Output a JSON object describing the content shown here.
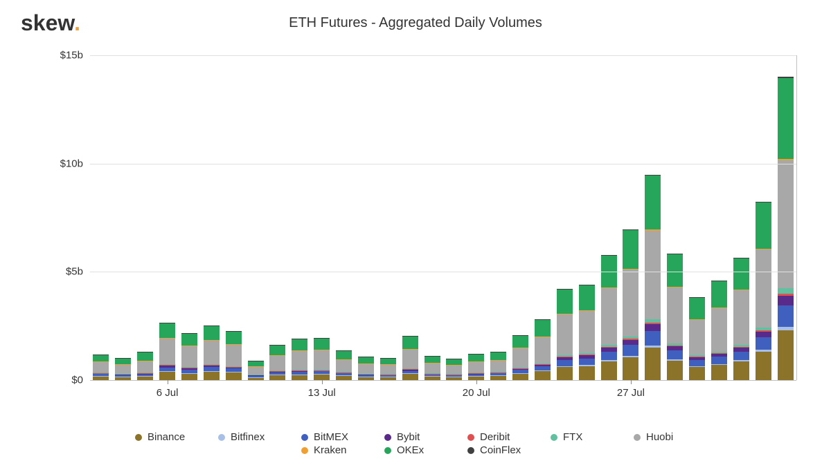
{
  "logo": {
    "text": "skew",
    "dot": "."
  },
  "title": "ETH Futures - Aggregated Daily Volumes",
  "chart": {
    "type": "stacked-bar",
    "background_color": "#ffffff",
    "grid_color": "#e0e0e0",
    "axis_color": "#c0c0c0",
    "text_color": "#333333",
    "title_fontsize": 20,
    "label_fontsize": 15,
    "ylim": [
      0,
      15
    ],
    "yticks": [
      0,
      5,
      10,
      15
    ],
    "ytick_labels": [
      "$0",
      "$5b",
      "$10b",
      "$15b"
    ],
    "bar_width_ratio": 0.72,
    "xticks": [
      3,
      10,
      17,
      24
    ],
    "xtick_labels": [
      "6 Jul",
      "13 Jul",
      "20 Jul",
      "27 Jul"
    ],
    "series": [
      {
        "key": "binance",
        "label": "Binance",
        "color": "#8b7329"
      },
      {
        "key": "bitfinex",
        "label": "Bitfinex",
        "color": "#a8c0e8"
      },
      {
        "key": "bitmex",
        "label": "BitMEX",
        "color": "#4060c0"
      },
      {
        "key": "bybit",
        "label": "Bybit",
        "color": "#5a2a8a"
      },
      {
        "key": "deribit",
        "label": "Deribit",
        "color": "#e05050"
      },
      {
        "key": "ftx",
        "label": "FTX",
        "color": "#60c0a0"
      },
      {
        "key": "huobi",
        "label": "Huobi",
        "color": "#a8a8a8"
      },
      {
        "key": "kraken",
        "label": "Kraken",
        "color": "#f0a030"
      },
      {
        "key": "okex",
        "label": "OKEx",
        "color": "#26a65b"
      },
      {
        "key": "coinflex",
        "label": "CoinFlex",
        "color": "#404040"
      }
    ],
    "legend_rows": [
      [
        "binance",
        "bitfinex",
        "bitmex",
        "bybit",
        "deribit",
        "ftx",
        "huobi"
      ],
      [
        "kraken",
        "okex",
        "coinflex"
      ]
    ],
    "data": [
      {
        "binance": 0.18,
        "bitfinex": 0.02,
        "bitmex": 0.08,
        "bybit": 0.04,
        "deribit": 0.01,
        "ftx": 0.03,
        "huobi": 0.5,
        "kraken": 0.01,
        "okex": 0.3,
        "coinflex": 0.01
      },
      {
        "binance": 0.15,
        "bitfinex": 0.02,
        "bitmex": 0.07,
        "bybit": 0.03,
        "deribit": 0.01,
        "ftx": 0.02,
        "huobi": 0.42,
        "kraken": 0.01,
        "okex": 0.28,
        "coinflex": 0.01
      },
      {
        "binance": 0.17,
        "bitfinex": 0.02,
        "bitmex": 0.08,
        "bybit": 0.04,
        "deribit": 0.01,
        "ftx": 0.03,
        "huobi": 0.55,
        "kraken": 0.01,
        "okex": 0.4,
        "coinflex": 0.01
      },
      {
        "binance": 0.38,
        "bitfinex": 0.03,
        "bitmex": 0.18,
        "bybit": 0.08,
        "deribit": 0.02,
        "ftx": 0.05,
        "huobi": 1.2,
        "kraken": 0.01,
        "okex": 0.7,
        "coinflex": 0.01
      },
      {
        "binance": 0.3,
        "bitfinex": 0.03,
        "bitmex": 0.15,
        "bybit": 0.06,
        "deribit": 0.02,
        "ftx": 0.04,
        "huobi": 1.0,
        "kraken": 0.01,
        "okex": 0.55,
        "coinflex": 0.01
      },
      {
        "binance": 0.4,
        "bitfinex": 0.03,
        "bitmex": 0.17,
        "bybit": 0.07,
        "deribit": 0.02,
        "ftx": 0.05,
        "huobi": 1.1,
        "kraken": 0.01,
        "okex": 0.65,
        "coinflex": 0.01
      },
      {
        "binance": 0.35,
        "bitfinex": 0.03,
        "bitmex": 0.15,
        "bybit": 0.06,
        "deribit": 0.02,
        "ftx": 0.04,
        "huobi": 1.0,
        "kraken": 0.01,
        "okex": 0.6,
        "coinflex": 0.01
      },
      {
        "binance": 0.12,
        "bitfinex": 0.02,
        "bitmex": 0.06,
        "bybit": 0.03,
        "deribit": 0.01,
        "ftx": 0.02,
        "huobi": 0.38,
        "kraken": 0.01,
        "okex": 0.25,
        "coinflex": 0.01
      },
      {
        "binance": 0.24,
        "bitfinex": 0.02,
        "bitmex": 0.1,
        "bybit": 0.05,
        "deribit": 0.01,
        "ftx": 0.03,
        "huobi": 0.7,
        "kraken": 0.01,
        "okex": 0.45,
        "coinflex": 0.01
      },
      {
        "binance": 0.25,
        "bitfinex": 0.02,
        "bitmex": 0.11,
        "bybit": 0.05,
        "deribit": 0.01,
        "ftx": 0.03,
        "huobi": 0.9,
        "kraken": 0.01,
        "okex": 0.52,
        "coinflex": 0.01
      },
      {
        "binance": 0.26,
        "bitfinex": 0.02,
        "bitmex": 0.12,
        "bybit": 0.05,
        "deribit": 0.01,
        "ftx": 0.03,
        "huobi": 0.9,
        "kraken": 0.01,
        "okex": 0.55,
        "coinflex": 0.01
      },
      {
        "binance": 0.2,
        "bitfinex": 0.02,
        "bitmex": 0.09,
        "bybit": 0.04,
        "deribit": 0.01,
        "ftx": 0.02,
        "huobi": 0.58,
        "kraken": 0.01,
        "okex": 0.4,
        "coinflex": 0.01
      },
      {
        "binance": 0.15,
        "bitfinex": 0.02,
        "bitmex": 0.07,
        "bybit": 0.03,
        "deribit": 0.01,
        "ftx": 0.02,
        "huobi": 0.45,
        "kraken": 0.01,
        "okex": 0.3,
        "coinflex": 0.01
      },
      {
        "binance": 0.14,
        "bitfinex": 0.02,
        "bitmex": 0.07,
        "bybit": 0.03,
        "deribit": 0.01,
        "ftx": 0.02,
        "huobi": 0.42,
        "kraken": 0.01,
        "okex": 0.3,
        "coinflex": 0.01
      },
      {
        "binance": 0.28,
        "bitfinex": 0.03,
        "bitmex": 0.12,
        "bybit": 0.06,
        "deribit": 0.01,
        "ftx": 0.04,
        "huobi": 0.9,
        "kraken": 0.01,
        "okex": 0.58,
        "coinflex": 0.01
      },
      {
        "binance": 0.16,
        "bitfinex": 0.02,
        "bitmex": 0.08,
        "bybit": 0.03,
        "deribit": 0.01,
        "ftx": 0.02,
        "huobi": 0.48,
        "kraken": 0.01,
        "okex": 0.3,
        "coinflex": 0.01
      },
      {
        "binance": 0.14,
        "bitfinex": 0.02,
        "bitmex": 0.07,
        "bybit": 0.03,
        "deribit": 0.01,
        "ftx": 0.02,
        "huobi": 0.4,
        "kraken": 0.01,
        "okex": 0.27,
        "coinflex": 0.01
      },
      {
        "binance": 0.17,
        "bitfinex": 0.02,
        "bitmex": 0.08,
        "bybit": 0.04,
        "deribit": 0.01,
        "ftx": 0.02,
        "huobi": 0.52,
        "kraken": 0.01,
        "okex": 0.32,
        "coinflex": 0.01
      },
      {
        "binance": 0.2,
        "bitfinex": 0.02,
        "bitmex": 0.09,
        "bybit": 0.04,
        "deribit": 0.01,
        "ftx": 0.02,
        "huobi": 0.53,
        "kraken": 0.01,
        "okex": 0.37,
        "coinflex": 0.01
      },
      {
        "binance": 0.3,
        "bitfinex": 0.03,
        "bitmex": 0.14,
        "bybit": 0.06,
        "deribit": 0.02,
        "ftx": 0.04,
        "huobi": 0.9,
        "kraken": 0.01,
        "okex": 0.55,
        "coinflex": 0.01
      },
      {
        "binance": 0.42,
        "bitfinex": 0.03,
        "bitmex": 0.18,
        "bybit": 0.08,
        "deribit": 0.02,
        "ftx": 0.05,
        "huobi": 1.2,
        "kraken": 0.02,
        "okex": 0.8,
        "coinflex": 0.01
      },
      {
        "binance": 0.6,
        "bitfinex": 0.05,
        "bitmex": 0.28,
        "bybit": 0.12,
        "deribit": 0.03,
        "ftx": 0.08,
        "huobi": 1.9,
        "kraken": 0.02,
        "okex": 1.1,
        "coinflex": 0.02
      },
      {
        "binance": 0.65,
        "bitfinex": 0.05,
        "bitmex": 0.3,
        "bybit": 0.14,
        "deribit": 0.03,
        "ftx": 0.08,
        "huobi": 1.95,
        "kraken": 0.02,
        "okex": 1.15,
        "coinflex": 0.02
      },
      {
        "binance": 0.85,
        "bitfinex": 0.07,
        "bitmex": 0.4,
        "bybit": 0.18,
        "deribit": 0.04,
        "ftx": 0.1,
        "huobi": 2.6,
        "kraken": 0.03,
        "okex": 1.5,
        "coinflex": 0.02
      },
      {
        "binance": 1.05,
        "bitfinex": 0.08,
        "bitmex": 0.5,
        "bybit": 0.22,
        "deribit": 0.05,
        "ftx": 0.12,
        "huobi": 3.1,
        "kraken": 0.03,
        "okex": 1.8,
        "coinflex": 0.02
      },
      {
        "binance": 1.5,
        "bitfinex": 0.1,
        "bitmex": 0.68,
        "bybit": 0.3,
        "deribit": 0.07,
        "ftx": 0.16,
        "huobi": 4.1,
        "kraken": 0.04,
        "okex": 2.5,
        "coinflex": 0.03
      },
      {
        "binance": 0.9,
        "bitfinex": 0.07,
        "bitmex": 0.4,
        "bybit": 0.18,
        "deribit": 0.04,
        "ftx": 0.1,
        "huobi": 2.6,
        "kraken": 0.03,
        "okex": 1.5,
        "coinflex": 0.02
      },
      {
        "binance": 0.6,
        "bitfinex": 0.05,
        "bitmex": 0.27,
        "bybit": 0.12,
        "deribit": 0.03,
        "ftx": 0.07,
        "huobi": 1.65,
        "kraken": 0.02,
        "okex": 1.0,
        "coinflex": 0.02
      },
      {
        "binance": 0.7,
        "bitfinex": 0.05,
        "bitmex": 0.32,
        "bybit": 0.14,
        "deribit": 0.03,
        "ftx": 0.08,
        "huobi": 2.0,
        "kraken": 0.02,
        "okex": 1.25,
        "coinflex": 0.02
      },
      {
        "binance": 0.85,
        "bitfinex": 0.07,
        "bitmex": 0.4,
        "bybit": 0.18,
        "deribit": 0.04,
        "ftx": 0.1,
        "huobi": 2.5,
        "kraken": 0.03,
        "okex": 1.45,
        "coinflex": 0.02
      },
      {
        "binance": 1.3,
        "bitfinex": 0.1,
        "bitmex": 0.58,
        "bybit": 0.25,
        "deribit": 0.06,
        "ftx": 0.14,
        "huobi": 3.6,
        "kraken": 0.04,
        "okex": 2.15,
        "coinflex": 0.03
      },
      {
        "binance": 2.3,
        "bitfinex": 0.15,
        "bitmex": 1.0,
        "bybit": 0.45,
        "deribit": 0.1,
        "ftx": 0.25,
        "huobi": 5.9,
        "kraken": 0.06,
        "okex": 3.75,
        "coinflex": 0.04
      }
    ]
  }
}
